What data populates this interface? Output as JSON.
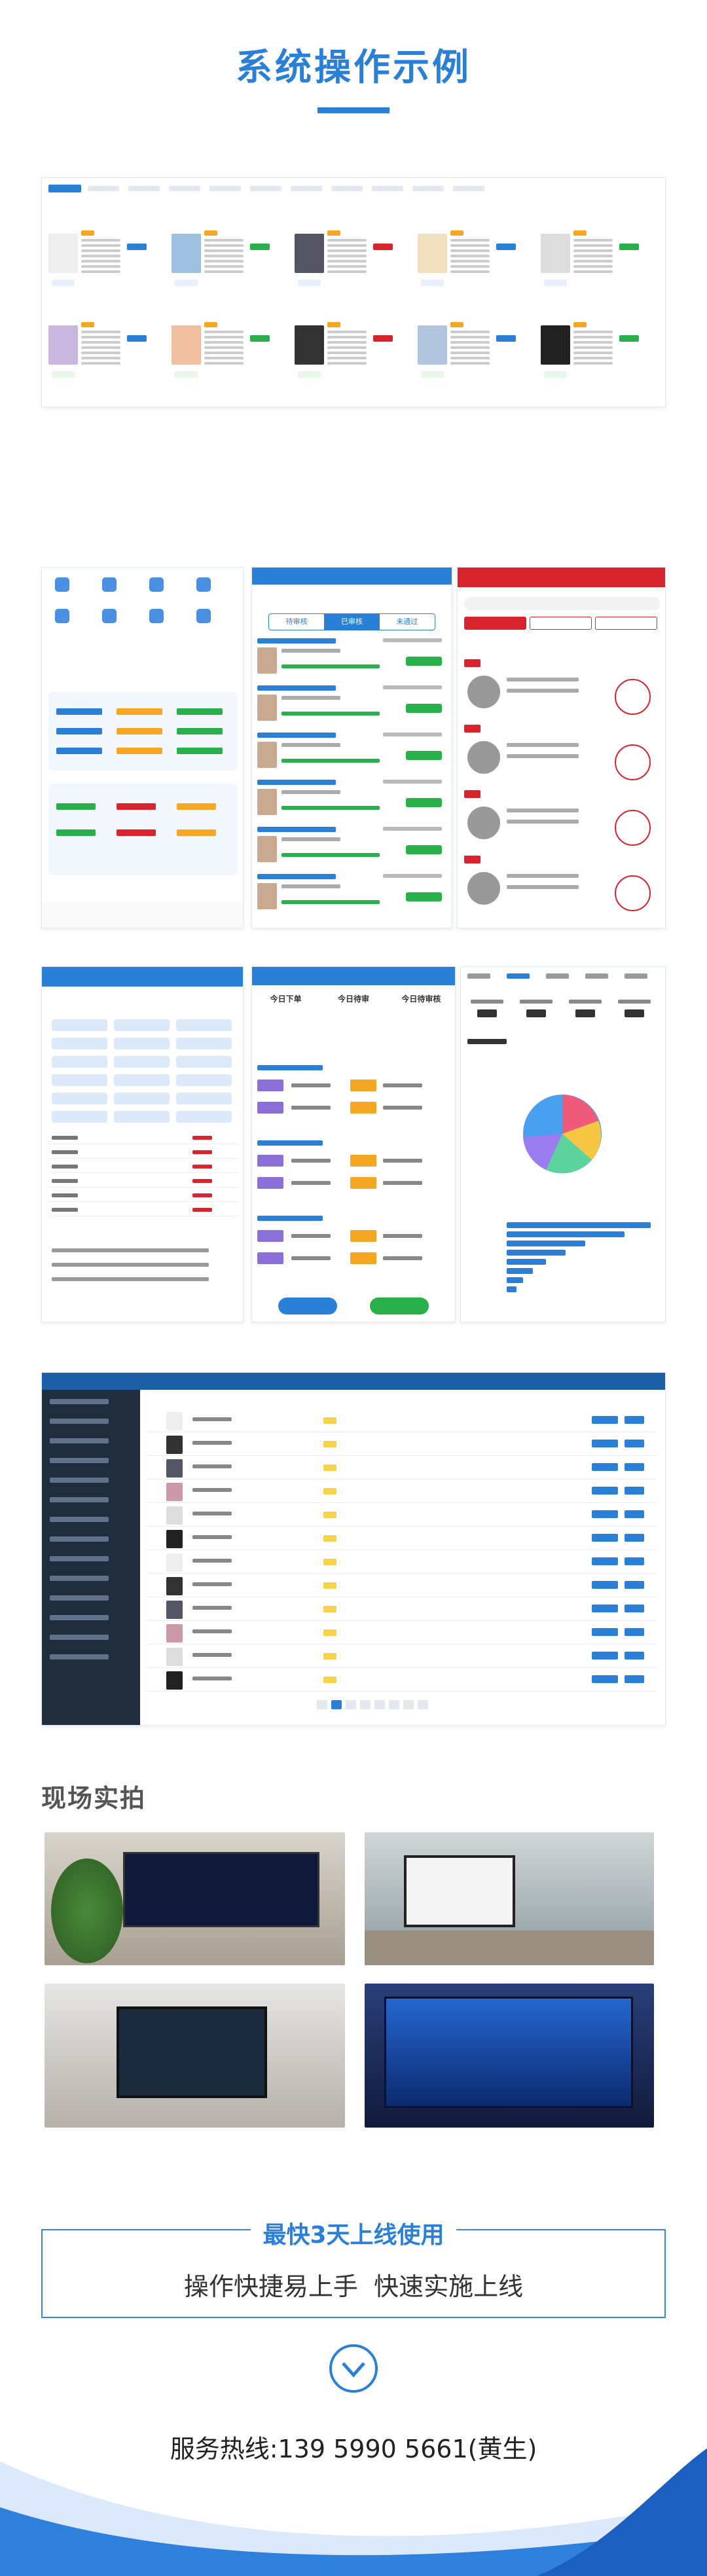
{
  "header": {
    "title": "系统操作示例"
  },
  "screens": {
    "mobile_tabs": [
      "待审核",
      "已审核",
      "未通过"
    ],
    "dashboard_stats": [
      "今日下单",
      "今日待审",
      "今日待审核"
    ]
  },
  "photos": {
    "title": "现场实拍"
  },
  "cta": {
    "heading": "最快3天上线使用",
    "subtitle": "操作快捷易上手  快速实施上线",
    "hotline": "服务热线:139 5990 5661(黄生)"
  }
}
